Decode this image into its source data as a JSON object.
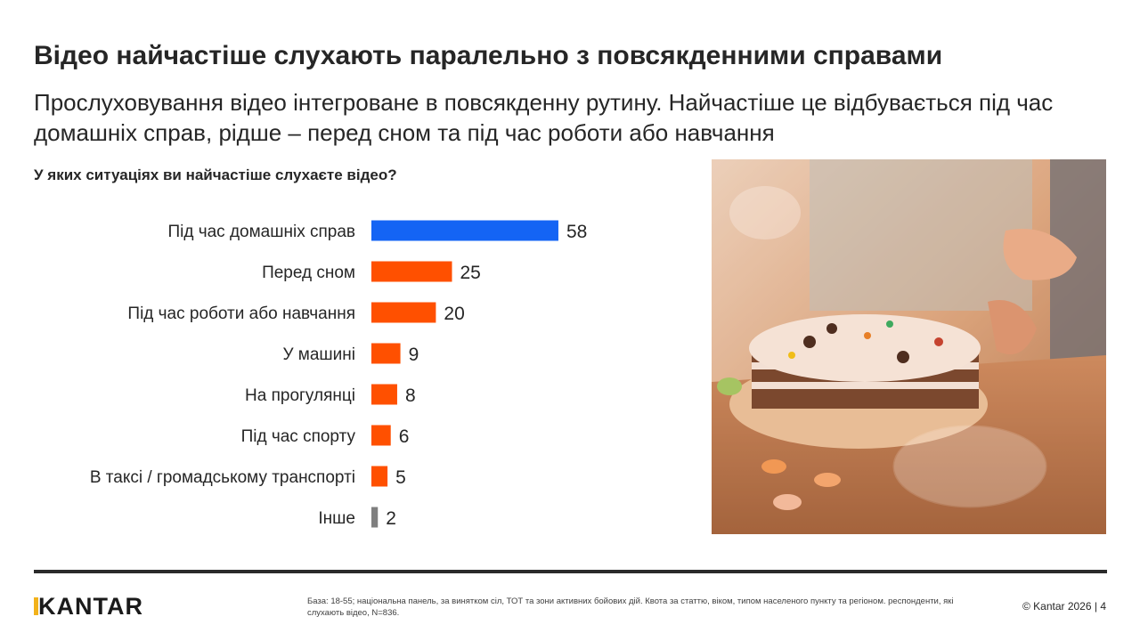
{
  "header": {
    "title": "Відео найчастіше слухають паралельно з повсякденними справами",
    "subtitle": "Прослуховування відео інтегроване в повсякденну рутину. Найчастіше це відбувається під час домашніх справ, рідше – перед сном та під час роботи або навчання",
    "question": "У яких ситуаціях ви найчастіше слухаєте відео?"
  },
  "chart_data": {
    "type": "bar",
    "orientation": "horizontal",
    "categories": [
      "Під час домашніх справ",
      "Перед сном",
      "Під час роботи або навчання",
      "У машині",
      "На прогулянці",
      "Під час спорту",
      "В таксі / громадському транспорті",
      "Інше"
    ],
    "values": [
      58,
      25,
      20,
      9,
      8,
      6,
      5,
      2
    ],
    "bar_colors": [
      "#1464f4",
      "#ff5000",
      "#ff5000",
      "#ff5000",
      "#ff5000",
      "#ff5000",
      "#ff5000",
      "#7f7f7f"
    ],
    "data_labels": true,
    "grid": false,
    "legend": "none"
  },
  "image": {
    "icon": "birthday-cake-photo"
  },
  "footer": {
    "logo": "KANTAR",
    "logo_accent": "#f2b21b",
    "note": "База: 18-55; національна панель, за винятком сіл, ТОТ та зони активних бойових дій. Квота за статтю, віком, типом населеного пункту та регіоном. респонденти, які слухають відео, N=836.",
    "copyright": "© Kantar 2026 | 4"
  }
}
